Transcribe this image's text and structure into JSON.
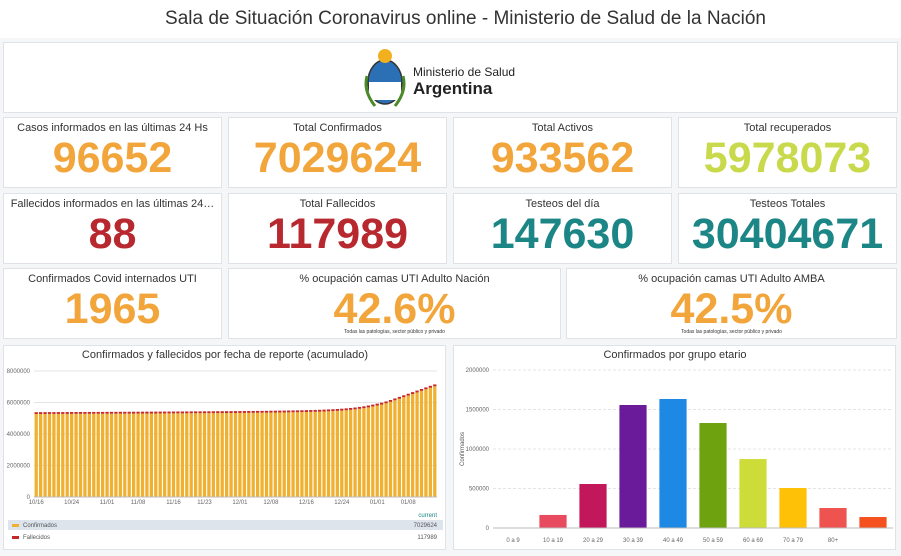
{
  "header": {
    "title": "Sala de Situación Coronavirus online - Ministerio de Salud de la Nación"
  },
  "logo": {
    "line1": "Ministerio de Salud",
    "line2": "Argentina"
  },
  "cards": [
    {
      "label": "Casos informados en las últimas 24 Hs",
      "value": 96652,
      "color": "#f2a53a"
    },
    {
      "label": "Total Confirmados",
      "value": 7029624,
      "color": "#f2a53a"
    },
    {
      "label": "Total Activos",
      "value": 933562,
      "color": "#f2a53a"
    },
    {
      "label": "Total recuperados",
      "value": 5978073,
      "color": "#c9d94c"
    },
    {
      "label": "Fallecidos informados en las últimas 24…",
      "value": 88,
      "color": "#b8282f"
    },
    {
      "label": "Total Fallecidos",
      "value": 117989,
      "color": "#b8282f"
    },
    {
      "label": "Testeos del día",
      "value": 147630,
      "color": "#1c8585"
    },
    {
      "label": "Testeos Totales",
      "value": 30404671,
      "color": "#1c8585"
    },
    {
      "label": "Confirmados Covid internados UTI",
      "value": 1965,
      "color": "#f2a53a"
    },
    {
      "label": "% ocupación camas UTI Adulto Nación",
      "value": "42.6%",
      "color": "#f2a53a",
      "note": "Todas las patologías, sector público y privado"
    },
    {
      "label": "% ocupación camas UTI Adulto AMBA",
      "value": "42.5%",
      "color": "#f2a53a",
      "note": "Todas las patologías, sector público y privado"
    }
  ],
  "chart_data": [
    {
      "type": "bar",
      "stacked": true,
      "title": "Confirmados y fallecidos por fecha de reporte (acumulado)",
      "grid": true,
      "legend_header": "current",
      "categories": [
        "10/16",
        null,
        null,
        null,
        null,
        null,
        null,
        null,
        "10/24",
        null,
        null,
        null,
        null,
        null,
        null,
        null,
        "11/01",
        null,
        null,
        null,
        null,
        null,
        null,
        "11/08",
        null,
        null,
        null,
        null,
        null,
        null,
        null,
        "11/16",
        null,
        null,
        null,
        null,
        null,
        null,
        "11/23",
        null,
        null,
        null,
        null,
        null,
        null,
        null,
        "12/01",
        null,
        null,
        null,
        null,
        null,
        null,
        "12/08",
        null,
        null,
        null,
        null,
        null,
        null,
        null,
        "12/16",
        null,
        null,
        null,
        null,
        null,
        null,
        null,
        "12/24",
        null,
        null,
        null,
        null,
        null,
        null,
        null,
        "01/01",
        null,
        null,
        null,
        null,
        null,
        null,
        "01/08",
        null,
        null,
        null,
        null,
        null,
        null
      ],
      "series": [
        {
          "name": "Confirmados",
          "color": "#f0b030",
          "values": [
            5270000,
            5271000,
            5272000,
            5273000,
            5274000,
            5275000,
            5276000,
            5277000,
            5279000,
            5280000,
            5281000,
            5282000,
            5283000,
            5285000,
            5286000,
            5287000,
            5289000,
            5290000,
            5291000,
            5293000,
            5294000,
            5295000,
            5297000,
            5298000,
            5300000,
            5301000,
            5303000,
            5304000,
            5306000,
            5307000,
            5309000,
            5310000,
            5312000,
            5313000,
            5315000,
            5317000,
            5318000,
            5320000,
            5322000,
            5324000,
            5326000,
            5328000,
            5330000,
            5332000,
            5334000,
            5336000,
            5338000,
            5341000,
            5343000,
            5346000,
            5349000,
            5352000,
            5355000,
            5358000,
            5362000,
            5366000,
            5370000,
            5374000,
            5379000,
            5384000,
            5390000,
            5396000,
            5403000,
            5411000,
            5420000,
            5430000,
            5442000,
            5455000,
            5470000,
            5488000,
            5510000,
            5535000,
            5565000,
            5600000,
            5640000,
            5690000,
            5750000,
            5810000,
            5870000,
            5950000,
            6040000,
            6140000,
            6240000,
            6340000,
            6440000,
            6540000,
            6640000,
            6740000,
            6840000,
            6940000,
            7029624
          ]
        },
        {
          "name": "Fallecidos",
          "color": "#c62828",
          "values": [
            115700,
            115725,
            115750,
            115775,
            115800,
            115825,
            115850,
            115875,
            115900,
            115925,
            115950,
            115975,
            116000,
            116025,
            116050,
            116075,
            116100,
            116125,
            116150,
            116175,
            116200,
            116225,
            116250,
            116275,
            116300,
            116325,
            116350,
            116375,
            116400,
            116425,
            116450,
            116475,
            116500,
            116525,
            116550,
            116575,
            116600,
            116625,
            116650,
            116675,
            116700,
            116725,
            116750,
            116775,
            116800,
            116825,
            116850,
            116875,
            116900,
            116925,
            116950,
            116975,
            117000,
            117025,
            117050,
            117075,
            117100,
            117125,
            117150,
            117175,
            117200,
            117225,
            117250,
            117275,
            117300,
            117325,
            117350,
            117375,
            117400,
            117425,
            117450,
            117475,
            117500,
            117525,
            117550,
            117575,
            117600,
            117625,
            117650,
            117675,
            117700,
            117725,
            117750,
            117775,
            117800,
            117825,
            117850,
            117875,
            117900,
            117925,
            117989
          ]
        }
      ],
      "ylim": [
        0,
        8000000
      ],
      "yticks": [
        0,
        2000000,
        4000000,
        6000000,
        8000000
      ]
    },
    {
      "type": "bar",
      "title": "Confirmados por grupo etario",
      "ylabel": "Confirmados",
      "grid": true,
      "categories": [
        "0 a 9",
        "10 a 19",
        "20 a 29",
        "30 a 39",
        "40 a 49",
        "50 a 59",
        "60 a 69",
        "70 a 79",
        "80+",
        null
      ],
      "values": [
        null,
        165000,
        557000,
        1557000,
        1633000,
        1329000,
        873000,
        506000,
        253000,
        139000
      ],
      "colors": [
        "#e84a5f",
        "#e84a5f",
        "#c2185b",
        "#6a1b9a",
        "#1e88e5",
        "#6ea20f",
        "#cddc39",
        "#ffc107",
        "#ef5350",
        "#f4511e"
      ],
      "ylim": [
        0,
        2000000
      ],
      "yticks": [
        0,
        500000,
        1000000,
        1500000,
        2000000
      ]
    }
  ]
}
